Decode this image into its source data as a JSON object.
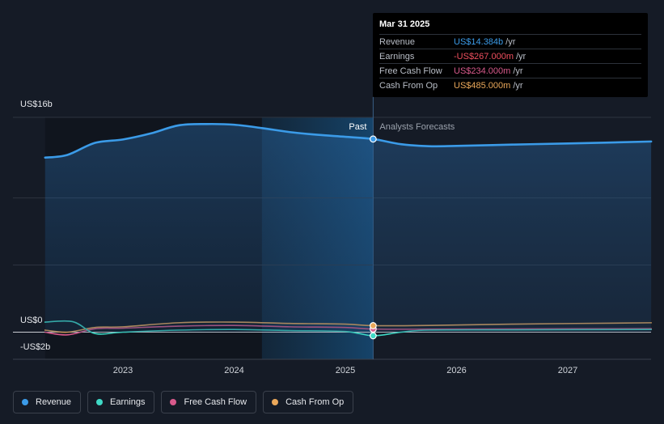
{
  "tooltip": {
    "date": "Mar 31 2025",
    "rows": [
      {
        "name": "Revenue",
        "value": "US$14.384b",
        "unit": "/yr",
        "color": "#3b9be8"
      },
      {
        "name": "Earnings",
        "value": "-US$267.000m",
        "unit": "/yr",
        "color": "#ef4f5e"
      },
      {
        "name": "Free Cash Flow",
        "value": "US$234.000m",
        "unit": "/yr",
        "color": "#d85a8c"
      },
      {
        "name": "Cash From Op",
        "value": "US$485.000m",
        "unit": "/yr",
        "color": "#eaa85a"
      }
    ]
  },
  "chart_data": {
    "type": "line",
    "y_labels": [
      {
        "text": "US$16b",
        "value": 16
      },
      {
        "text": "US$0",
        "value": 0
      },
      {
        "text": "-US$2b",
        "value": -2
      }
    ],
    "ylim": [
      -2,
      16
    ],
    "xlim": [
      2022.3,
      2027.75
    ],
    "x_ticks": [
      {
        "text": "2023",
        "value": 2023
      },
      {
        "text": "2024",
        "value": 2024
      },
      {
        "text": "2025",
        "value": 2025
      },
      {
        "text": "2026",
        "value": 2026
      },
      {
        "text": "2027",
        "value": 2027
      }
    ],
    "divider_x": 2025.25,
    "highlight_start_x": 2024.25,
    "past_label": "Past",
    "forecast_label": "Analysts Forecasts",
    "grid": true,
    "legend_position": "bottom-left",
    "series": [
      {
        "name": "Revenue",
        "color": "#3b9be8",
        "width": 2.6,
        "fill": true,
        "points": [
          [
            2022.3,
            13.0
          ],
          [
            2022.5,
            13.2
          ],
          [
            2022.75,
            14.1
          ],
          [
            2023.0,
            14.35
          ],
          [
            2023.25,
            14.8
          ],
          [
            2023.5,
            15.4
          ],
          [
            2023.75,
            15.5
          ],
          [
            2024.0,
            15.45
          ],
          [
            2024.25,
            15.2
          ],
          [
            2024.5,
            14.9
          ],
          [
            2024.75,
            14.7
          ],
          [
            2025.0,
            14.55
          ],
          [
            2025.25,
            14.384
          ],
          [
            2025.5,
            14.0
          ],
          [
            2025.75,
            13.85
          ],
          [
            2026.0,
            13.87
          ],
          [
            2026.5,
            13.97
          ],
          [
            2027.0,
            14.05
          ],
          [
            2027.75,
            14.2
          ]
        ]
      },
      {
        "name": "Earnings",
        "color": "#3fd9c6",
        "width": 1.6,
        "fill": false,
        "points": [
          [
            2022.3,
            0.75
          ],
          [
            2022.55,
            0.78
          ],
          [
            2022.75,
            -0.1
          ],
          [
            2023.0,
            0.0
          ],
          [
            2023.5,
            0.15
          ],
          [
            2024.0,
            0.2
          ],
          [
            2024.5,
            0.12
          ],
          [
            2025.0,
            0.05
          ],
          [
            2025.25,
            -0.267
          ],
          [
            2025.5,
            0.0
          ],
          [
            2025.75,
            0.15
          ],
          [
            2026.5,
            0.17
          ],
          [
            2027.75,
            0.2
          ]
        ]
      },
      {
        "name": "Free Cash Flow",
        "color": "#d85a8c",
        "width": 1.6,
        "fill": false,
        "points": [
          [
            2022.3,
            0.0
          ],
          [
            2022.5,
            -0.2
          ],
          [
            2022.75,
            0.25
          ],
          [
            2023.0,
            0.3
          ],
          [
            2023.5,
            0.45
          ],
          [
            2024.0,
            0.5
          ],
          [
            2024.5,
            0.4
          ],
          [
            2025.0,
            0.35
          ],
          [
            2025.25,
            0.234
          ],
          [
            2025.75,
            0.22
          ],
          [
            2026.5,
            0.24
          ],
          [
            2027.75,
            0.26
          ]
        ]
      },
      {
        "name": "Cash From Op",
        "color": "#eaa85a",
        "width": 1.6,
        "fill": false,
        "points": [
          [
            2022.3,
            0.15
          ],
          [
            2022.5,
            0.0
          ],
          [
            2022.75,
            0.35
          ],
          [
            2023.0,
            0.4
          ],
          [
            2023.5,
            0.7
          ],
          [
            2024.0,
            0.75
          ],
          [
            2024.5,
            0.65
          ],
          [
            2025.0,
            0.6
          ],
          [
            2025.25,
            0.485
          ],
          [
            2025.75,
            0.5
          ],
          [
            2026.5,
            0.6
          ],
          [
            2027.75,
            0.7
          ]
        ]
      }
    ]
  },
  "legend": [
    {
      "label": "Revenue",
      "color": "#3b9be8"
    },
    {
      "label": "Earnings",
      "color": "#3fd9c6"
    },
    {
      "label": "Free Cash Flow",
      "color": "#d85a8c"
    },
    {
      "label": "Cash From Op",
      "color": "#eaa85a"
    }
  ]
}
